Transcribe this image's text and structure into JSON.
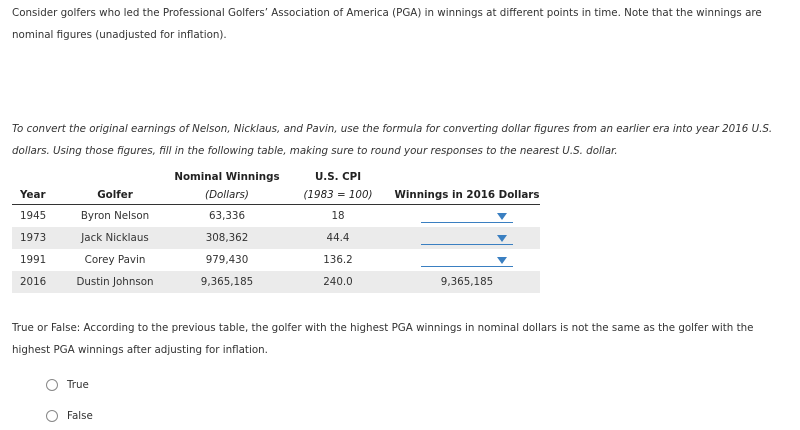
{
  "intro": "Consider golfers who led the Professional Golfers’ Association of America (PGA) in winnings at different points in time. Note that the winnings are nominal figures (unadjusted for inflation).",
  "instruction": "To convert the original earnings of Nelson, Nicklaus, and Pavin, use the formula for converting dollar figures from an earlier era into year 2016 U.S. dollars. Using those figures, fill in the following table, making sure to round your responses to the nearest U.S. dollar.",
  "table": {
    "header": {
      "year": "Year",
      "golfer": "Golfer",
      "nominal": [
        "Nominal Winnings",
        "(Dollars)"
      ],
      "cpi": [
        "U.S. CPI",
        "(1983 = 100)"
      ],
      "winnings": "Winnings in 2016 Dollars"
    },
    "rows": [
      [
        "1945",
        "Byron Nelson",
        "63,336",
        "18"
      ],
      [
        "1973",
        "Jack Nicklaus",
        "308,362",
        "44.4"
      ],
      [
        "1991",
        "Corey Pavin",
        "979,430",
        "136.2"
      ],
      [
        "2016",
        "Dustin Johnson",
        "9,365,185",
        "240.0",
        "9,365,185"
      ]
    ]
  },
  "question": "True or False: According to the previous table, the golfer with the highest PGA winnings in nominal dollars is not the same as the golfer with the highest PGA winnings after adjusting for inflation.",
  "options": [
    "True",
    "False"
  ]
}
